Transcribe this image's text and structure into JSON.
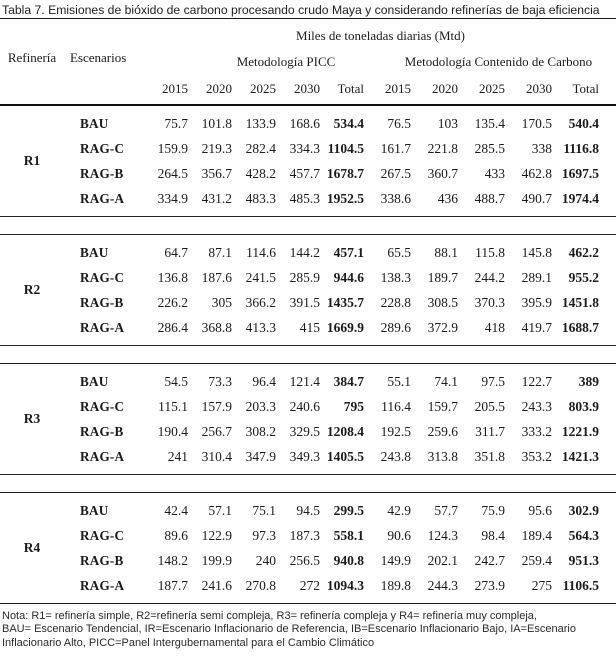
{
  "title": "Tabla 7. Emisiones de bióxido de carbono procesando crudo Maya y considerando refinerías de baja eficiencia",
  "header": {
    "unit_label": "Miles de toneladas diarias (Mtd)",
    "col_refineria": "Refinería",
    "col_escenarios": "Escenarios",
    "group_picc": "Metodología PICC",
    "group_carbono": "Metodología Contenido de Carbono",
    "years": [
      "2015",
      "2020",
      "2025",
      "2030",
      "Total",
      "2015",
      "2020",
      "2025",
      "2030",
      "Total"
    ]
  },
  "chart_data": {
    "type": "table",
    "title": "Tabla 7. Emisiones de bióxido de carbono procesando crudo Maya y considerando refinerías de baja eficiencia",
    "unit": "Miles de toneladas diarias (Mtd)",
    "column_groups": [
      "Metodología PICC",
      "Metodología Contenido de Carbono"
    ],
    "columns": [
      "2015",
      "2020",
      "2025",
      "2030",
      "Total",
      "2015",
      "2020",
      "2025",
      "2030",
      "Total"
    ]
  },
  "blocks": [
    {
      "refinery": "R1",
      "rows": [
        {
          "scenario": "BAU",
          "values": [
            "75.7",
            "101.8",
            "133.9",
            "168.6",
            "534.4",
            "76.5",
            "103",
            "135.4",
            "170.5",
            "540.4"
          ]
        },
        {
          "scenario": "RAG-C",
          "values": [
            "159.9",
            "219.3",
            "282.4",
            "334.3",
            "1104.5",
            "161.7",
            "221.8",
            "285.5",
            "338",
            "1116.8"
          ]
        },
        {
          "scenario": "RAG-B",
          "values": [
            "264.5",
            "356.7",
            "428.2",
            "457.7",
            "1678.7",
            "267.5",
            "360.7",
            "433",
            "462.8",
            "1697.5"
          ]
        },
        {
          "scenario": "RAG-A",
          "values": [
            "334.9",
            "431.2",
            "483.3",
            "485.3",
            "1952.5",
            "338.6",
            "436",
            "488.7",
            "490.7",
            "1974.4"
          ]
        }
      ]
    },
    {
      "refinery": "R2",
      "rows": [
        {
          "scenario": "BAU",
          "values": [
            "64.7",
            "87.1",
            "114.6",
            "144.2",
            "457.1",
            "65.5",
            "88.1",
            "115.8",
            "145.8",
            "462.2"
          ]
        },
        {
          "scenario": "RAG-C",
          "values": [
            "136.8",
            "187.6",
            "241.5",
            "285.9",
            "944.6",
            "138.3",
            "189.7",
            "244.2",
            "289.1",
            "955.2"
          ]
        },
        {
          "scenario": "RAG-B",
          "values": [
            "226.2",
            "305",
            "366.2",
            "391.5",
            "1435.7",
            "228.8",
            "308.5",
            "370.3",
            "395.9",
            "1451.8"
          ]
        },
        {
          "scenario": "RAG-A",
          "values": [
            "286.4",
            "368.8",
            "413.3",
            "415",
            "1669.9",
            "289.6",
            "372.9",
            "418",
            "419.7",
            "1688.7"
          ]
        }
      ]
    },
    {
      "refinery": "R3",
      "rows": [
        {
          "scenario": "BAU",
          "values": [
            "54.5",
            "73.3",
            "96.4",
            "121.4",
            "384.7",
            "55.1",
            "74.1",
            "97.5",
            "122.7",
            "389"
          ]
        },
        {
          "scenario": "RAG-C",
          "values": [
            "115.1",
            "157.9",
            "203.3",
            "240.6",
            "795",
            "116.4",
            "159.7",
            "205.5",
            "243.3",
            "803.9"
          ]
        },
        {
          "scenario": "RAG-B",
          "values": [
            "190.4",
            "256.7",
            "308.2",
            "329.5",
            "1208.4",
            "192.5",
            "259.6",
            "311.7",
            "333.2",
            "1221.9"
          ]
        },
        {
          "scenario": "RAG-A",
          "values": [
            "241",
            "310.4",
            "347.9",
            "349.3",
            "1405.5",
            "243.8",
            "313.8",
            "351.8",
            "353.2",
            "1421.3"
          ]
        }
      ]
    },
    {
      "refinery": "R4",
      "rows": [
        {
          "scenario": "BAU",
          "values": [
            "42.4",
            "57.1",
            "75.1",
            "94.5",
            "299.5",
            "42.9",
            "57.7",
            "75.9",
            "95.6",
            "302.9"
          ]
        },
        {
          "scenario": "RAG-C",
          "values": [
            "89.6",
            "122.9",
            "97.3",
            "187.3",
            "558.1",
            "90.6",
            "124.3",
            "98.4",
            "189.4",
            "564.3"
          ]
        },
        {
          "scenario": "RAG-B",
          "values": [
            "148.2",
            "199.9",
            "240",
            "256.5",
            "940.8",
            "149.9",
            "202.1",
            "242.7",
            "259.4",
            "951.3"
          ]
        },
        {
          "scenario": "RAG-A",
          "values": [
            "187.7",
            "241.6",
            "270.8",
            "272",
            "1094.3",
            "189.8",
            "244.3",
            "273.9",
            "275",
            "1106.5"
          ]
        }
      ]
    }
  ],
  "note_lines": [
    "Nota: R1= refinería simple, R2=refinería semi compleja, R3= refinería compleja y R4= refinería muy compleja,",
    "BAU= Escenario Tendencial, IR=Escenario Inflacionario de Referencia, IB=Escenario Inflacionario Bajo, IA=Escenario",
    "Inflacionario Alto, PICC=Panel Intergubernamental para el Cambio Climático"
  ]
}
